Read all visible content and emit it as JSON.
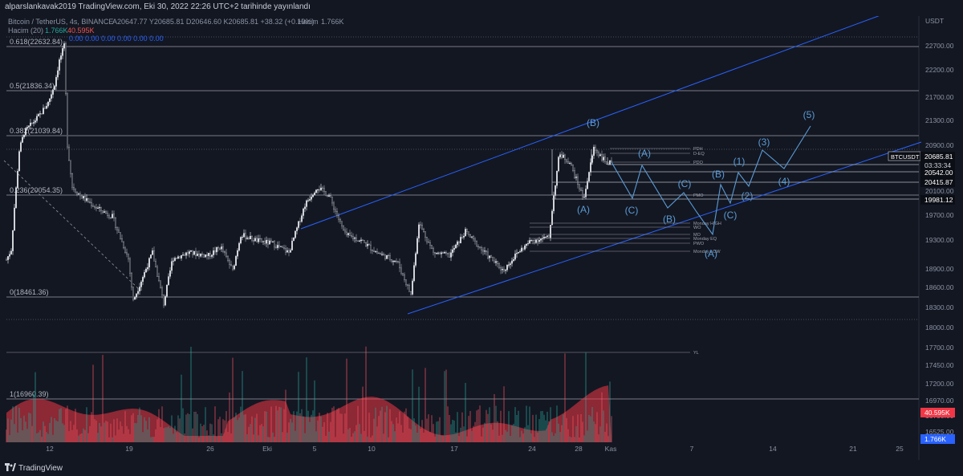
{
  "header": {
    "text": "alparslankavak2019 TradingView.com, Eki 30, 2022 22:26 UTC+2 tarihinde yayınlandı"
  },
  "legend": {
    "symbol": "Bitcoin / TetherUS, 4s, BINANCE",
    "ohlc": "A20647.77  Y20685.81  D20646.60  K20685.81  +38.32 (+0.19%)",
    "volume_label": "Hacim",
    "volume_value": "1.766K",
    "vol_ma_label": "Hacim (20)",
    "vol_ma_value1": "1.766K",
    "vol_ma_value2": "40.595K",
    "zeros": "0.00  0.00  0.00  0.00  0.00  0.00",
    "value_color_green": "#26a69a",
    "value_color_red": "#ef5350"
  },
  "footer": {
    "brand": "TradingView"
  },
  "chart_data": {
    "type": "candlestick",
    "symbol": "BTCUSDT",
    "currency": "USDT",
    "y_axis_ticks": [
      22700,
      22200,
      21700,
      21300,
      20900,
      20100,
      19700,
      19300,
      18900,
      18600,
      18300,
      18000,
      17700,
      17450,
      17200,
      16970,
      16750,
      16525
    ],
    "x_axis_ticks": [
      "12",
      "19",
      "26",
      "Eki",
      "5",
      "10",
      "17",
      "24",
      "28",
      "Kas",
      "7",
      "14",
      "21",
      "25"
    ],
    "price_tags": [
      {
        "label": "BTCUSDT",
        "value": "20685.81",
        "extra": "03:33:34",
        "style": "dark"
      },
      {
        "value": "20542.00",
        "style": "dark"
      },
      {
        "value": "20415.87",
        "style": "dark"
      },
      {
        "value": "19981.12",
        "style": "dark"
      },
      {
        "value": "40.595K",
        "style": "red"
      },
      {
        "value": "1.766K",
        "style": "blue"
      }
    ],
    "fib_levels": [
      {
        "label": "0.618(22632.84)",
        "price": 22632.84
      },
      {
        "label": "0.5(21836.34)",
        "price": 21836.34
      },
      {
        "label": "0.382(21039.84)",
        "price": 21039.84
      },
      {
        "label": "0.236(20054.35)",
        "price": 20054.35
      },
      {
        "label": "0(18461.36)",
        "price": 18461.36
      },
      {
        "label": "1(16960.39)",
        "price": 16960.39
      }
    ],
    "level_labels": [
      "PDH",
      "D-EQ",
      "PDO",
      "PMO",
      "Monday HIGH",
      "WO",
      "MO",
      "Monday EQ",
      "PWO",
      "Monday LOW",
      "YL"
    ],
    "wave_labels": [
      "(B)",
      "(A)",
      "(A)",
      "(C)",
      "(C)",
      "(B)",
      "(B)",
      "(1)",
      "(2)",
      "(3)",
      "(4)",
      "(5)",
      "(C)",
      "(A)"
    ],
    "price_range": {
      "high": 22640,
      "low": 18160
    },
    "last_price": 20685.81
  }
}
